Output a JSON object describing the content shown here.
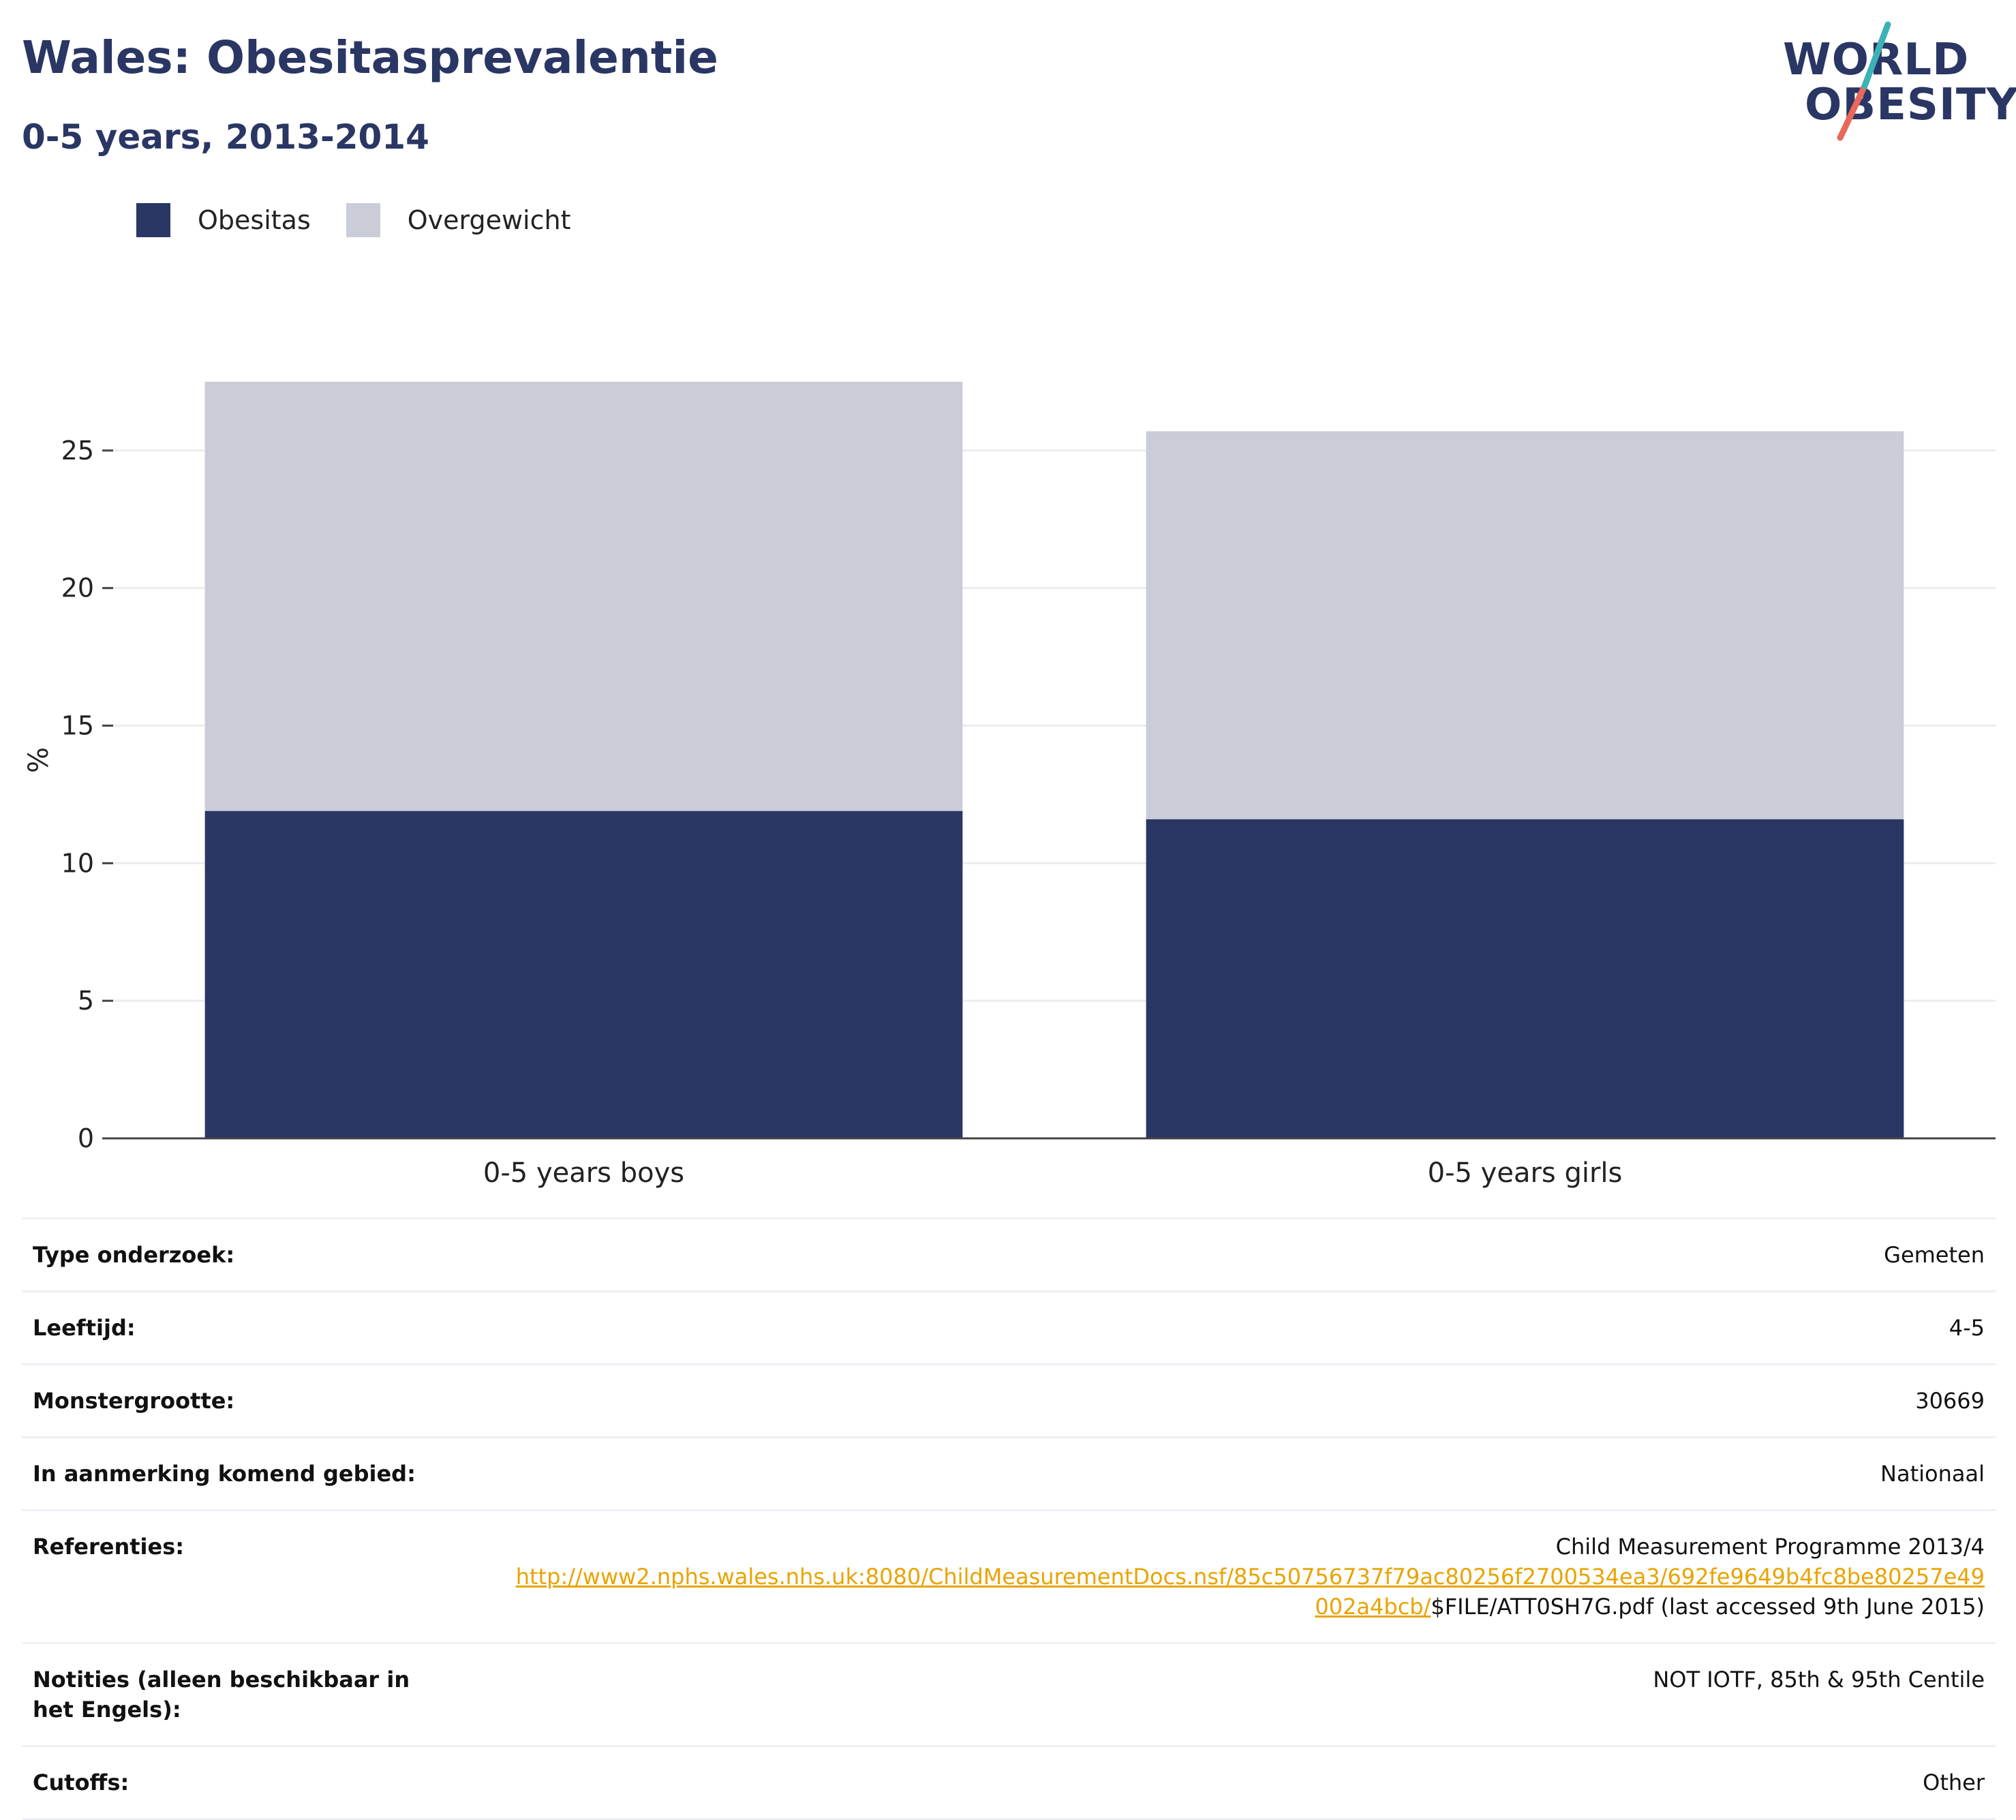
{
  "header": {
    "title": "Wales: Obesitasprevalentie",
    "subtitle": "0-5 years, 2013-2014"
  },
  "logo": {
    "line1": "WORLD",
    "line2": "OBESITY"
  },
  "legend": [
    {
      "label": "Obesitas",
      "color": "#2a3663"
    },
    {
      "label": "Overgewicht",
      "color": "#cacdd8"
    }
  ],
  "chart_data": {
    "type": "bar",
    "stacked": true,
    "categories": [
      "0-5 years boys",
      "0-5 years girls"
    ],
    "series": [
      {
        "name": "Obesitas",
        "values": [
          11.9,
          11.6
        ],
        "color": "#2a3663"
      },
      {
        "name": "Overgewicht",
        "values": [
          15.6,
          14.1
        ],
        "color": "#cacdd8"
      }
    ],
    "ylabel": "%",
    "ylim": [
      0,
      27.5
    ],
    "yticks": [
      0,
      5,
      10,
      15,
      20,
      25
    ],
    "grid": true,
    "legend_position": "top-left"
  },
  "info": [
    {
      "key": "Type onderzoek:",
      "value": "Gemeten"
    },
    {
      "key": "Leeftijd:",
      "value": "4-5"
    },
    {
      "key": "Monstergrootte:",
      "value": "30669"
    },
    {
      "key": "In aanmerking komend gebied:",
      "value": "Nationaal"
    },
    {
      "key": "Referenties:",
      "value": "Child Measurement Programme 2013/4",
      "link": "http://www2.nphs.wales.nhs.uk:8080/ChildMeasurementDocs.nsf/85c50756737f79ac80256f2700534ea3/692fe9649b4fc8be80257e49002a4bcb/",
      "value_after": "$FILE/ATT0SH7G.pdf (last accessed 9th June 2015)"
    },
    {
      "key": "Notities (alleen beschikbaar in het Engels):",
      "value": "NOT IOTF, 85th & 95th Centile"
    },
    {
      "key": "Cutoffs:",
      "value": "Other"
    }
  ]
}
